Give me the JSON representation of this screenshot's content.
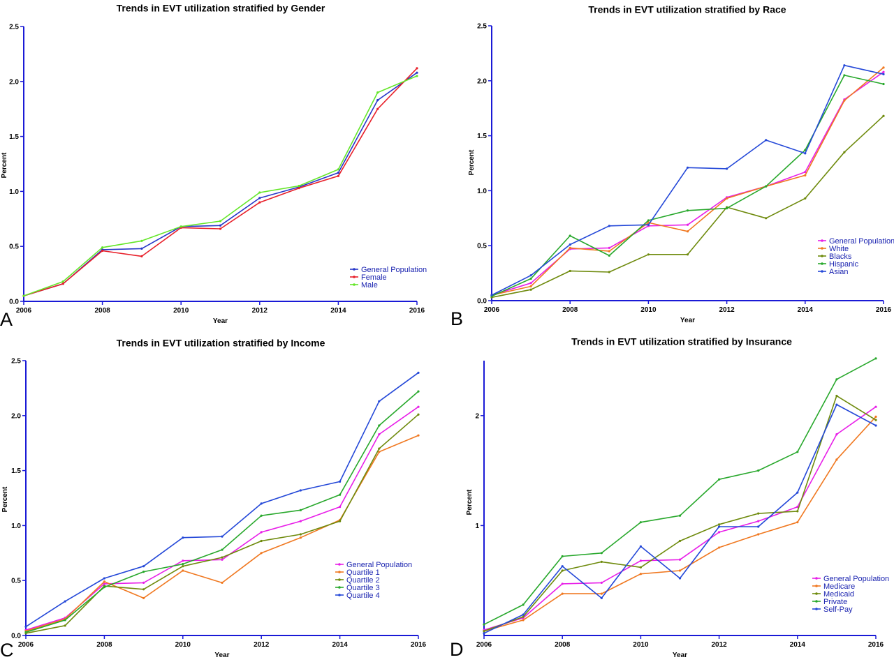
{
  "colors": {
    "axis": "#1a1ad6",
    "legend_text": "#1a23b0",
    "general_population": "#e81ee8",
    "white": "#f07820",
    "blacks": "#6e8a0c",
    "hispanic": "#28a82c",
    "asian": "#2448d8",
    "female": "#e8202a",
    "male": "#64e628",
    "gen_pop_gender": "#2636c8"
  },
  "chart_data": [
    {
      "type": "line",
      "panel_letter": "A",
      "title": "Trends in EVT utilization stratified by Gender",
      "xlabel": "Year",
      "ylabel": "Percent",
      "xlim": [
        2006,
        2016
      ],
      "ylim": [
        0,
        2.5
      ],
      "x_ticks": [
        "2006",
        "2008",
        "2010",
        "2012",
        "2014",
        "2016"
      ],
      "y_ticks": [
        "0.0",
        "0.5",
        "1.0",
        "1.5",
        "2.0",
        "2.5"
      ],
      "grid": false,
      "legend_position": "bottom-right",
      "x": [
        2006,
        2007,
        2008,
        2009,
        2010,
        2011,
        2012,
        2013,
        2014,
        2015,
        2016
      ],
      "series": [
        {
          "name": "General Population",
          "color": "#2636c8",
          "values": [
            0.05,
            0.16,
            0.47,
            0.48,
            0.68,
            0.69,
            0.94,
            1.04,
            1.17,
            1.83,
            2.08
          ]
        },
        {
          "name": "Female",
          "color": "#e8202a",
          "values": [
            0.05,
            0.16,
            0.46,
            0.41,
            0.67,
            0.66,
            0.9,
            1.03,
            1.14,
            1.75,
            2.12
          ]
        },
        {
          "name": "Male",
          "color": "#64e628",
          "values": [
            0.05,
            0.18,
            0.49,
            0.55,
            0.68,
            0.73,
            0.99,
            1.05,
            1.2,
            1.9,
            2.05
          ]
        }
      ]
    },
    {
      "type": "line",
      "panel_letter": "B",
      "title": "Trends in EVT utilization stratified by Race",
      "xlabel": "Year",
      "ylabel": "Percent",
      "xlim": [
        2006,
        2016
      ],
      "ylim": [
        0,
        2.5
      ],
      "x_ticks": [
        "2006",
        "2008",
        "2010",
        "2012",
        "2014",
        "2016"
      ],
      "y_ticks": [
        "0.0",
        "0.5",
        "1.0",
        "1.5",
        "2.0",
        "2.5"
      ],
      "grid": false,
      "legend_position": "bottom-right",
      "x": [
        2006,
        2007,
        2008,
        2009,
        2010,
        2011,
        2012,
        2013,
        2014,
        2015,
        2016
      ],
      "series": [
        {
          "name": "General Population",
          "color": "#e81ee8",
          "values": [
            0.05,
            0.16,
            0.47,
            0.48,
            0.68,
            0.69,
            0.94,
            1.04,
            1.17,
            1.83,
            2.08
          ]
        },
        {
          "name": "White",
          "color": "#f07820",
          "values": [
            0.05,
            0.13,
            0.48,
            0.45,
            0.71,
            0.63,
            0.93,
            1.04,
            1.14,
            1.82,
            2.12
          ]
        },
        {
          "name": "Blacks",
          "color": "#6e8a0c",
          "values": [
            0.03,
            0.1,
            0.27,
            0.26,
            0.42,
            0.42,
            0.85,
            0.75,
            0.93,
            1.35,
            1.68
          ]
        },
        {
          "name": "Hispanic",
          "color": "#28a82c",
          "values": [
            0.04,
            0.2,
            0.59,
            0.41,
            0.73,
            0.82,
            0.84,
            1.04,
            1.37,
            2.05,
            1.97
          ]
        },
        {
          "name": "Asian",
          "color": "#2448d8",
          "values": [
            0.05,
            0.23,
            0.51,
            0.68,
            0.69,
            1.21,
            1.2,
            1.46,
            1.34,
            2.14,
            2.06
          ]
        }
      ]
    },
    {
      "type": "line",
      "panel_letter": "C",
      "title": "Trends in EVT utilization stratified by Income",
      "xlabel": "Year",
      "ylabel": "Percent",
      "xlim": [
        2006,
        2016
      ],
      "ylim": [
        0,
        2.5
      ],
      "x_ticks": [
        "2006",
        "2008",
        "2010",
        "2012",
        "2014",
        "2016"
      ],
      "y_ticks": [
        "0.0",
        "0.5",
        "1.0",
        "1.5",
        "2.0",
        "2.5"
      ],
      "grid": false,
      "legend_position": "bottom-right",
      "x": [
        2006,
        2007,
        2008,
        2009,
        2010,
        2011,
        2012,
        2013,
        2014,
        2015,
        2016
      ],
      "series": [
        {
          "name": "General Population",
          "color": "#e81ee8",
          "values": [
            0.05,
            0.16,
            0.47,
            0.48,
            0.68,
            0.69,
            0.94,
            1.04,
            1.17,
            1.83,
            2.08
          ]
        },
        {
          "name": "Quartile 1",
          "color": "#f07820",
          "values": [
            0.04,
            0.15,
            0.49,
            0.34,
            0.59,
            0.48,
            0.75,
            0.89,
            1.05,
            1.67,
            1.82
          ]
        },
        {
          "name": "Quartile 2",
          "color": "#6e8a0c",
          "values": [
            0.02,
            0.09,
            0.45,
            0.42,
            0.63,
            0.71,
            0.86,
            0.92,
            1.04,
            1.7,
            2.01
          ]
        },
        {
          "name": "Quartile 3",
          "color": "#28a82c",
          "values": [
            0.03,
            0.14,
            0.44,
            0.58,
            0.65,
            0.78,
            1.09,
            1.14,
            1.28,
            1.91,
            2.22
          ]
        },
        {
          "name": "Quartile 4",
          "color": "#2448d8",
          "values": [
            0.08,
            0.31,
            0.52,
            0.63,
            0.89,
            0.9,
            1.2,
            1.32,
            1.4,
            2.13,
            2.39
          ]
        }
      ]
    },
    {
      "type": "line",
      "panel_letter": "D",
      "title": "Trends in EVT utilization stratified by Insurance",
      "xlabel": "Year",
      "ylabel": "Percent",
      "xlim": [
        2006,
        2016
      ],
      "ylim": [
        0,
        2.5
      ],
      "x_ticks": [
        "2006",
        "2008",
        "2010",
        "2012",
        "2014",
        "2016"
      ],
      "y_ticks": [
        "1",
        "2"
      ],
      "y_tick_values": [
        1,
        2
      ],
      "grid": false,
      "legend_position": "bottom-right",
      "x": [
        2006,
        2007,
        2008,
        2009,
        2010,
        2011,
        2012,
        2013,
        2014,
        2015,
        2016
      ],
      "series": [
        {
          "name": "General Population",
          "color": "#e81ee8",
          "values": [
            0.05,
            0.16,
            0.47,
            0.48,
            0.68,
            0.69,
            0.94,
            1.04,
            1.17,
            1.83,
            2.08
          ]
        },
        {
          "name": "Medicare",
          "color": "#f07820",
          "values": [
            0.04,
            0.14,
            0.38,
            0.38,
            0.56,
            0.59,
            0.8,
            0.92,
            1.03,
            1.6,
            1.99
          ]
        },
        {
          "name": "Medicaid",
          "color": "#6e8a0c",
          "values": [
            0.04,
            0.17,
            0.59,
            0.67,
            0.62,
            0.86,
            1.01,
            1.11,
            1.13,
            2.18,
            1.96
          ]
        },
        {
          "name": "Private",
          "color": "#28a82c",
          "values": [
            0.1,
            0.28,
            0.72,
            0.75,
            1.03,
            1.09,
            1.42,
            1.5,
            1.67,
            2.33,
            2.52
          ]
        },
        {
          "name": "Self-Pay",
          "color": "#2448d8",
          "values": [
            0.02,
            0.19,
            0.63,
            0.34,
            0.81,
            0.52,
            0.99,
            0.99,
            1.3,
            2.1,
            1.91
          ]
        }
      ]
    }
  ]
}
